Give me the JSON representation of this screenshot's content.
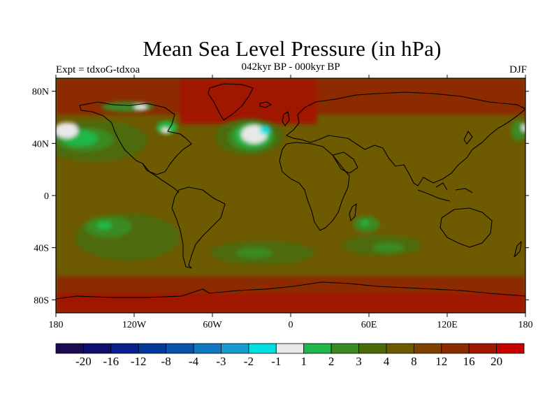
{
  "title": "Mean Sea Level Pressure (in hPa)",
  "subtitle_left": "Expt = tdxoG-tdxoa",
  "subtitle_center": "042kyr BP - 000kyr BP",
  "subtitle_right": "DJF",
  "map": {
    "projection": "cylindrical-equidistant",
    "lon_range": [
      -180,
      180
    ],
    "lat_range": [
      -90,
      90
    ],
    "background_color": "#6e5a00",
    "x_ticks": [
      {
        "lon": -180,
        "label": "180"
      },
      {
        "lon": -120,
        "label": "120W"
      },
      {
        "lon": -60,
        "label": "60W"
      },
      {
        "lon": 0,
        "label": "0"
      },
      {
        "lon": 60,
        "label": "60E"
      },
      {
        "lon": 120,
        "label": "120E"
      },
      {
        "lon": 180,
        "label": "180"
      }
    ],
    "y_ticks": [
      {
        "lat": 80,
        "label": "80N"
      },
      {
        "lat": 40,
        "label": "40N"
      },
      {
        "lat": 0,
        "label": "0"
      },
      {
        "lat": -40,
        "label": "40S"
      },
      {
        "lat": -80,
        "label": "80S"
      }
    ]
  },
  "colorbar": {
    "colors": [
      "#1a0a52",
      "#0c0f70",
      "#08208e",
      "#05399c",
      "#0a55ac",
      "#1078c0",
      "#159cd0",
      "#00e0e0",
      "#e8e8e8",
      "#1fb84a",
      "#3b8a22",
      "#4d6a08",
      "#6e5a00",
      "#804200",
      "#8c2a00",
      "#a01800",
      "#c80000"
    ],
    "labels": [
      "-20",
      "-16",
      "-12",
      "-8",
      "-4",
      "-3",
      "-2",
      "-1",
      "1",
      "2",
      "3",
      "4",
      "8",
      "12",
      "16",
      "20"
    ]
  },
  "fields": [
    {
      "name": "band-south-polar",
      "color": "#a01800",
      "lon": [
        -180,
        180
      ],
      "lat": [
        -90,
        -75
      ]
    },
    {
      "name": "band-south-sub",
      "color": "#8c2a00",
      "lon": [
        -180,
        180
      ],
      "lat": [
        -75,
        -62
      ]
    },
    {
      "name": "band-north-sub",
      "color": "#8c2a00",
      "lon": [
        -180,
        180
      ],
      "lat": [
        62,
        90
      ]
    },
    {
      "name": "greenland-high",
      "color": "#a01800",
      "lon": [
        -85,
        20
      ],
      "lat": [
        55,
        90
      ]
    }
  ],
  "blobs": [
    {
      "name": "s-pacific-green",
      "color": "#4d6a08",
      "lon": -125,
      "lat": -32,
      "rlon": 40,
      "rlat": 18
    },
    {
      "name": "s-pacific-lg",
      "color": "#3b8a22",
      "lon": -140,
      "lat": -24,
      "rlon": 18,
      "rlat": 8
    },
    {
      "name": "s-pacific-core",
      "color": "#1fb84a",
      "lon": -143,
      "lat": -23,
      "rlon": 6,
      "rlat": 3
    },
    {
      "name": "s-atlantic-green",
      "color": "#4d6a08",
      "lon": -22,
      "lat": -44,
      "rlon": 40,
      "rlat": 9
    },
    {
      "name": "s-atlantic-core",
      "color": "#3b8a22",
      "lon": -28,
      "lat": -44,
      "rlon": 14,
      "rlat": 4
    },
    {
      "name": "indian-green",
      "color": "#4d6a08",
      "lon": 70,
      "lat": -38,
      "rlon": 30,
      "rlat": 8
    },
    {
      "name": "indian-core",
      "color": "#3b8a22",
      "lon": 75,
      "lat": -40,
      "rlon": 12,
      "rlat": 4
    },
    {
      "name": "madagascar-green",
      "color": "#3b8a22",
      "lon": 58,
      "lat": -22,
      "rlon": 10,
      "rlat": 6
    },
    {
      "name": "madagascar-core",
      "color": "#1fb84a",
      "lon": 57,
      "lat": -21,
      "rlon": 3,
      "rlat": 2
    },
    {
      "name": "n-pacific-green",
      "color": "#4d6a08",
      "lon": -150,
      "lat": 42,
      "rlon": 40,
      "rlat": 16
    },
    {
      "name": "n-pacific-lg",
      "color": "#3b8a22",
      "lon": -158,
      "lat": 43,
      "rlon": 22,
      "rlat": 9
    },
    {
      "name": "n-pacific-core",
      "color": "#1fb84a",
      "lon": -162,
      "lat": 44,
      "rlon": 14,
      "rlat": 6
    },
    {
      "name": "n-pacific-white",
      "color": "#e8e8e8",
      "lon": -172,
      "lat": 50,
      "rlon": 9,
      "rlat": 6
    },
    {
      "name": "w-pacific-green",
      "color": "#3b8a22",
      "lon": 175,
      "lat": 50,
      "rlon": 6,
      "rlat": 8
    },
    {
      "name": "w-pacific-white",
      "color": "#e8e8e8",
      "lon": 179,
      "lat": 52,
      "rlon": 2,
      "rlat": 3
    },
    {
      "name": "n-atlantic-green",
      "color": "#4d6a08",
      "lon": -32,
      "lat": 45,
      "rlon": 26,
      "rlat": 14
    },
    {
      "name": "n-atlantic-lg",
      "color": "#3b8a22",
      "lon": -30,
      "lat": 45,
      "rlon": 18,
      "rlat": 11
    },
    {
      "name": "n-atlantic-core",
      "color": "#1fb84a",
      "lon": -29,
      "lat": 46,
      "rlon": 14,
      "rlat": 9
    },
    {
      "name": "n-atlantic-white",
      "color": "#e8e8e8",
      "lon": -28,
      "lat": 47,
      "rlon": 10,
      "rlat": 7
    },
    {
      "name": "n-atlantic-cyan",
      "color": "#00e0e0",
      "lon": -20,
      "lat": 50,
      "rlon": 4,
      "rlat": 3
    },
    {
      "name": "hudson-green",
      "color": "#1fb84a",
      "lon": -95,
      "lat": 52,
      "rlon": 8,
      "rlat": 5
    },
    {
      "name": "hudson-white",
      "color": "#e8e8e8",
      "lon": -96,
      "lat": 50,
      "rlon": 3,
      "rlat": 2
    },
    {
      "name": "arctic-green",
      "color": "#3b8a22",
      "lon": -125,
      "lat": 68,
      "rlon": 20,
      "rlat": 4
    },
    {
      "name": "arctic-white",
      "color": "#e8e8e8",
      "lon": -115,
      "lat": 68,
      "rlon": 5,
      "rlat": 2
    }
  ]
}
